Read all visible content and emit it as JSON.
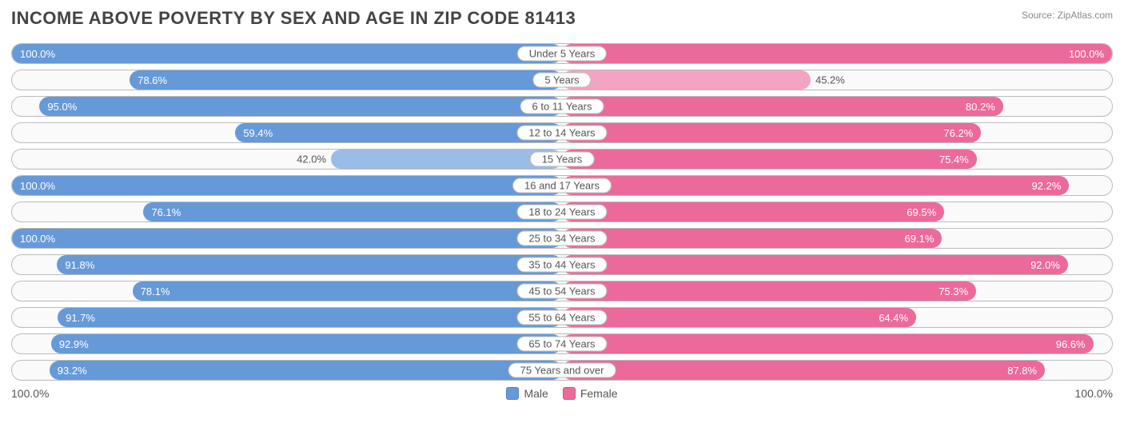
{
  "title": "INCOME ABOVE POVERTY BY SEX AND AGE IN ZIP CODE 81413",
  "source": "Source: ZipAtlas.com",
  "axis_left": "100.0%",
  "axis_right": "100.0%",
  "legend": {
    "male": "Male",
    "female": "Female"
  },
  "colors": {
    "male": "#6699d8",
    "male_light": "#9bbce6",
    "female": "#ec6a9b",
    "female_light": "#f4a4c3",
    "row_border": "#bbbbbb",
    "row_bg": "#fafafa",
    "text": "#555555"
  },
  "rows": [
    {
      "label": "Under 5 Years",
      "male": 100.0,
      "female": 100.0,
      "male_light": false,
      "female_light": false
    },
    {
      "label": "5 Years",
      "male": 78.6,
      "female": 45.2,
      "male_light": false,
      "female_light": true
    },
    {
      "label": "6 to 11 Years",
      "male": 95.0,
      "female": 80.2,
      "male_light": false,
      "female_light": false
    },
    {
      "label": "12 to 14 Years",
      "male": 59.4,
      "female": 76.2,
      "male_light": false,
      "female_light": false
    },
    {
      "label": "15 Years",
      "male": 42.0,
      "female": 75.4,
      "male_light": true,
      "female_light": false
    },
    {
      "label": "16 and 17 Years",
      "male": 100.0,
      "female": 92.2,
      "male_light": false,
      "female_light": false
    },
    {
      "label": "18 to 24 Years",
      "male": 76.1,
      "female": 69.5,
      "male_light": false,
      "female_light": false
    },
    {
      "label": "25 to 34 Years",
      "male": 100.0,
      "female": 69.1,
      "male_light": false,
      "female_light": false
    },
    {
      "label": "35 to 44 Years",
      "male": 91.8,
      "female": 92.0,
      "male_light": false,
      "female_light": false
    },
    {
      "label": "45 to 54 Years",
      "male": 78.1,
      "female": 75.3,
      "male_light": false,
      "female_light": false
    },
    {
      "label": "55 to 64 Years",
      "male": 91.7,
      "female": 64.4,
      "male_light": false,
      "female_light": false
    },
    {
      "label": "65 to 74 Years",
      "male": 92.9,
      "female": 96.6,
      "male_light": false,
      "female_light": false
    },
    {
      "label": "75 Years and over",
      "male": 93.2,
      "female": 87.8,
      "male_light": false,
      "female_light": false
    }
  ],
  "label_outside_threshold": 55
}
